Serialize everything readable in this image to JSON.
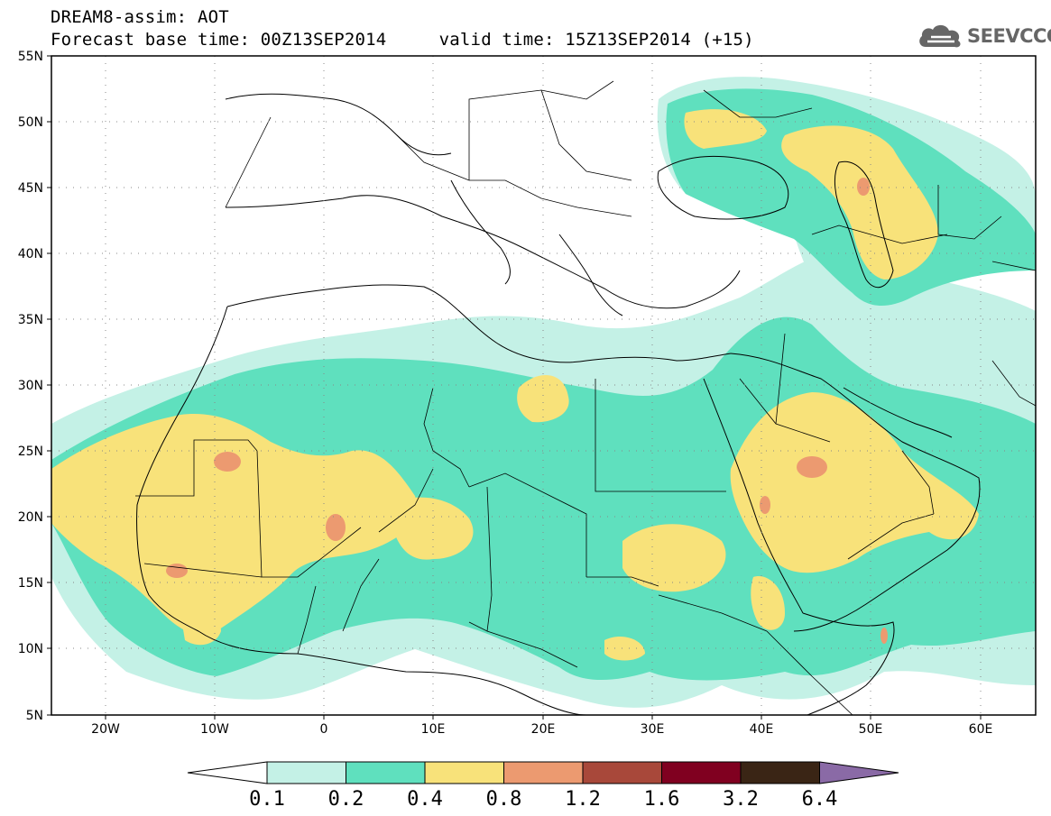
{
  "header": {
    "line1": "DREAM8-assim: AOT",
    "line2": "Forecast base time: 00Z13SEP2014     valid time: 15Z13SEP2014 (+15)"
  },
  "logo": {
    "text": "SEEVCCC",
    "icon": "cloud-icon",
    "color": "#666666"
  },
  "map": {
    "projection": "lat-lon",
    "lon_range": [
      -25,
      65
    ],
    "lat_range": [
      5,
      55
    ],
    "lat_ticks": [
      "55N",
      "50N",
      "45N",
      "40N",
      "35N",
      "30N",
      "25N",
      "20N",
      "15N",
      "10N",
      "5N"
    ],
    "lon_ticks": [
      "20W",
      "10W",
      "0",
      "10E",
      "20E",
      "30E",
      "40E",
      "50E",
      "60E"
    ]
  },
  "colorbar": {
    "labels": [
      "0.1",
      "0.2",
      "0.4",
      "0.8",
      "1.2",
      "1.6",
      "3.2",
      "6.4"
    ],
    "colors": [
      "#c4f1e6",
      "#5fe0be",
      "#f8e27a",
      "#ec9a70",
      "#a8483a",
      "#800020",
      "#3a2515",
      "#8a6aa6"
    ],
    "under_color": "#ffffff"
  }
}
